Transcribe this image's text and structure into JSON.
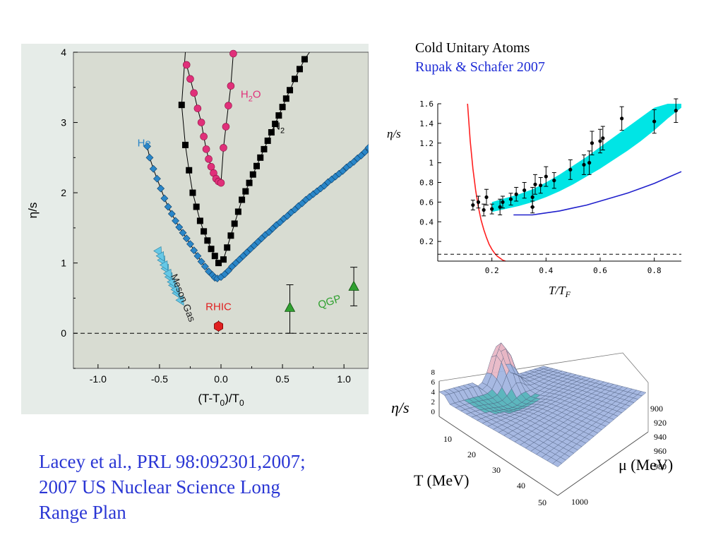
{
  "citation": {
    "line1": "Lacey et al., PRL 98:092301,2007;",
    "line2": "2007 US Nuclear Science Long",
    "line3": "Range Plan"
  },
  "cold_atoms": {
    "title": "Cold Unitary Atoms",
    "subtitle": "Rupak & Schafer 2007"
  },
  "surface_plot": {
    "zlabel": "η/s",
    "xlabel": "T (MeV)",
    "ylabel": "μ (MeV)",
    "x_ticks": [
      "10",
      "20",
      "30",
      "40",
      "50"
    ],
    "y_ticks": [
      "900",
      "920",
      "940",
      "960",
      "980",
      "1000"
    ],
    "z_ticks": [
      "0",
      "2",
      "4",
      "6",
      "8"
    ],
    "colors": {
      "mesh": "#9fb3df",
      "peak": "#e7b6c4",
      "valley": "#4fb0b8",
      "grid": "#4a5a7a"
    }
  },
  "chart_data": [
    {
      "type": "scatter",
      "xlabel": "(T-T0)/T0",
      "ylabel": "η/s",
      "xlim": [
        -1.2,
        1.2
      ],
      "ylim": [
        -0.5,
        4
      ],
      "x_ticks": [
        "-1.0",
        "-0.5",
        "0.0",
        "0.5",
        "1.0"
      ],
      "y_ticks": [
        "0",
        "1",
        "2",
        "3",
        "4"
      ],
      "grid": false,
      "reference_line_y": 0,
      "colors": {
        "background": "#d8dcd2",
        "frame": "#e6ece8",
        "He": "#2a86c8",
        "N2": "#000000",
        "H2O": "#e0307a",
        "Meson Gas": "#66c8e6",
        "RHIC": "#e02020",
        "QGP": "#30a030"
      },
      "series": [
        {
          "name": "He",
          "marker": "diamond",
          "x": [
            -0.6,
            -0.58,
            -0.55,
            -0.52,
            -0.49,
            -0.46,
            -0.43,
            -0.4,
            -0.37,
            -0.34,
            -0.31,
            -0.28,
            -0.25,
            -0.22,
            -0.19,
            -0.16,
            -0.13,
            -0.1,
            -0.07,
            -0.05,
            -0.03,
            0.0,
            0.03,
            0.06,
            0.09,
            0.12,
            0.15,
            0.18,
            0.21,
            0.24,
            0.27,
            0.3,
            0.33,
            0.36,
            0.39,
            0.42,
            0.45,
            0.48,
            0.51,
            0.54,
            0.57,
            0.6,
            0.63,
            0.66,
            0.69,
            0.72,
            0.75,
            0.78,
            0.81,
            0.84,
            0.87,
            0.9,
            0.93,
            0.96,
            0.99,
            1.02,
            1.05,
            1.08,
            1.11,
            1.14,
            1.17,
            1.2
          ],
          "y": [
            2.66,
            2.5,
            2.34,
            2.2,
            2.06,
            1.92,
            1.8,
            1.7,
            1.6,
            1.51,
            1.43,
            1.35,
            1.27,
            1.18,
            1.1,
            1.02,
            0.95,
            0.88,
            0.83,
            0.79,
            0.78,
            0.8,
            0.84,
            0.89,
            0.95,
            1.0,
            1.05,
            1.1,
            1.15,
            1.2,
            1.25,
            1.3,
            1.35,
            1.4,
            1.44,
            1.49,
            1.54,
            1.58,
            1.63,
            1.67,
            1.72,
            1.76,
            1.81,
            1.85,
            1.9,
            1.94,
            1.98,
            2.02,
            2.06,
            2.1,
            2.15,
            2.19,
            2.23,
            2.27,
            2.31,
            2.36,
            2.4,
            2.44,
            2.49,
            2.53,
            2.58,
            2.64
          ]
        },
        {
          "name": "N2",
          "marker": "square",
          "x": [
            -0.32,
            -0.29,
            -0.26,
            -0.23,
            -0.2,
            -0.17,
            -0.14,
            -0.11,
            -0.08,
            -0.05,
            -0.02,
            0.02,
            0.05,
            0.08,
            0.11,
            0.14,
            0.17,
            0.2,
            0.23,
            0.26,
            0.29,
            0.32,
            0.35,
            0.38,
            0.41,
            0.44,
            0.47,
            0.5,
            0.53,
            0.56,
            0.6,
            0.64,
            0.68
          ],
          "y": [
            3.25,
            2.68,
            2.32,
            2.0,
            1.8,
            1.6,
            1.45,
            1.32,
            1.2,
            1.1,
            1.0,
            1.05,
            1.22,
            1.39,
            1.56,
            1.73,
            1.9,
            2.02,
            2.14,
            2.26,
            2.38,
            2.5,
            2.62,
            2.74,
            2.86,
            2.98,
            3.1,
            3.22,
            3.34,
            3.46,
            3.62,
            3.76,
            3.9
          ]
        },
        {
          "name": "H2O",
          "marker": "circle",
          "x": [
            -0.28,
            -0.25,
            -0.22,
            -0.19,
            -0.16,
            -0.14,
            -0.12,
            -0.1,
            -0.08,
            -0.06,
            -0.04,
            -0.02,
            0.0,
            0.02,
            0.04,
            0.06,
            0.08,
            0.1
          ],
          "y": [
            3.82,
            3.62,
            3.42,
            3.2,
            3.0,
            2.8,
            2.62,
            2.48,
            2.37,
            2.28,
            2.2,
            2.16,
            2.14,
            2.64,
            2.94,
            3.24,
            3.52,
            3.98
          ]
        },
        {
          "name": "Meson Gas",
          "marker": "triangle-right",
          "x": [
            -0.5,
            -0.47,
            -0.44,
            -0.41,
            -0.38,
            -0.35,
            -0.32,
            -0.48,
            -0.45,
            -0.42,
            -0.39,
            -0.36
          ],
          "y": [
            1.15,
            1.02,
            0.9,
            0.78,
            0.66,
            0.55,
            0.45,
            1.08,
            0.95,
            0.83,
            0.71,
            0.6
          ]
        },
        {
          "name": "RHIC",
          "marker": "hexagon",
          "x": [
            -0.02
          ],
          "y": [
            0.1
          ],
          "err": [
            0.08
          ]
        },
        {
          "name": "QGP",
          "marker": "triangle-up",
          "x": [
            0.56,
            1.08
          ],
          "y": [
            0.37,
            0.67
          ],
          "err_low": [
            0.37,
            0.28
          ],
          "err_high": [
            0.32,
            0.27
          ]
        }
      ],
      "annotations": [
        {
          "text": "He",
          "x": -0.68,
          "y": 2.66
        },
        {
          "text": "N2",
          "x": 0.42,
          "y": 2.9
        },
        {
          "text": "H2O",
          "x": 0.16,
          "y": 3.35
        },
        {
          "text": "Meson Gas",
          "x": -0.41,
          "y": 0.82
        },
        {
          "text": "RHIC",
          "x": -0.02,
          "y": 0.33
        },
        {
          "text": "QGP",
          "x": 0.8,
          "y": 0.35
        }
      ]
    },
    {
      "type": "scatter",
      "xlabel": "T/TF",
      "ylabel": "η/s",
      "xlim": [
        0,
        0.9
      ],
      "ylim": [
        0,
        1.6
      ],
      "x_ticks": [
        "0.2",
        "0.4",
        "0.6",
        "0.8"
      ],
      "y_ticks": [
        "0.2",
        "0.4",
        "0.6",
        "0.8",
        "1",
        "1.2",
        "1.4",
        "1.6"
      ],
      "grid": false,
      "colors": {
        "band": "#00e5e5",
        "red": "#ff2020",
        "blue": "#2020cc",
        "points": "#000000"
      },
      "band": {
        "x": [
          0.2,
          0.25,
          0.3,
          0.35,
          0.4,
          0.45,
          0.5,
          0.55,
          0.6,
          0.65,
          0.7,
          0.75,
          0.8,
          0.85,
          0.9
        ],
        "low": [
          0.5,
          0.53,
          0.56,
          0.6,
          0.65,
          0.71,
          0.78,
          0.86,
          0.94,
          1.03,
          1.12,
          1.22,
          1.33,
          1.45,
          1.56
        ],
        "high": [
          0.6,
          0.64,
          0.68,
          0.73,
          0.8,
          0.88,
          0.97,
          1.06,
          1.16,
          1.26,
          1.36,
          1.46,
          1.56,
          1.6,
          1.6
        ]
      },
      "series": [
        {
          "name": "",
          "line": "red",
          "x": [
            0.11,
            0.12,
            0.13,
            0.14,
            0.15,
            0.16,
            0.17,
            0.18,
            0.19,
            0.2,
            0.21,
            0.22,
            0.23,
            0.24,
            0.25
          ],
          "y": [
            1.6,
            1.22,
            0.94,
            0.72,
            0.55,
            0.42,
            0.32,
            0.24,
            0.17,
            0.12,
            0.08,
            0.05,
            0.03,
            0.01,
            0.0
          ]
        },
        {
          "name": "",
          "line": "blue",
          "x": [
            0.28,
            0.35,
            0.4,
            0.45,
            0.5,
            0.55,
            0.6,
            0.65,
            0.7,
            0.75,
            0.8,
            0.85,
            0.9
          ],
          "y": [
            0.47,
            0.47,
            0.49,
            0.51,
            0.54,
            0.57,
            0.61,
            0.65,
            0.69,
            0.74,
            0.79,
            0.85,
            0.91
          ]
        },
        {
          "name": "",
          "line": "dashed",
          "x": [
            0,
            0.9
          ],
          "y": [
            0.07,
            0.07
          ]
        },
        {
          "name": "",
          "points": true,
          "x": [
            0.13,
            0.15,
            0.17,
            0.18,
            0.2,
            0.23,
            0.24,
            0.27,
            0.29,
            0.32,
            0.35,
            0.35,
            0.36,
            0.38,
            0.4,
            0.43,
            0.49,
            0.54,
            0.56,
            0.57,
            0.6,
            0.61,
            0.68,
            0.8,
            0.88
          ],
          "y": [
            0.57,
            0.6,
            0.52,
            0.65,
            0.53,
            0.55,
            0.6,
            0.63,
            0.68,
            0.72,
            0.65,
            0.55,
            0.78,
            0.77,
            0.86,
            0.82,
            0.93,
            0.98,
            1.0,
            1.2,
            1.22,
            1.25,
            1.45,
            1.42,
            1.53
          ],
          "err": [
            0.05,
            0.06,
            0.06,
            0.08,
            0.05,
            0.08,
            0.06,
            0.06,
            0.07,
            0.08,
            0.1,
            0.06,
            0.1,
            0.08,
            0.1,
            0.08,
            0.1,
            0.1,
            0.12,
            0.12,
            0.12,
            0.12,
            0.12,
            0.12,
            0.12
          ]
        }
      ]
    }
  ]
}
